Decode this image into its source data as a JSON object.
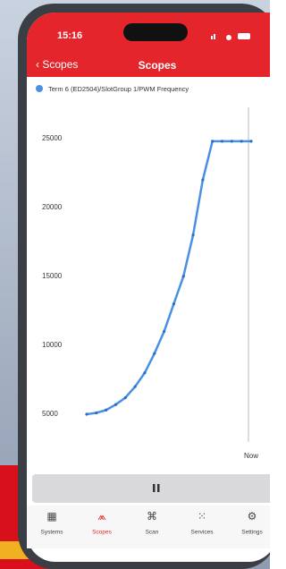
{
  "status_bar": {
    "time": "15:16"
  },
  "nav": {
    "back": "Scopes",
    "title": "Scopes"
  },
  "chart_data": {
    "type": "line",
    "categories": [
      null,
      null,
      null,
      null,
      null,
      null,
      null,
      null,
      null,
      null,
      null,
      null,
      null,
      null,
      null,
      null,
      null,
      "Now"
    ],
    "series": [
      {
        "name": "Term 6 (ED2504)/SlotGroup 1/PWM Frequency",
        "color": "#4a90e2",
        "values": [
          5000,
          5100,
          5300,
          5700,
          6200,
          7000,
          8000,
          9400,
          11000,
          13000,
          15000,
          18000,
          22000,
          24800,
          24800,
          24800,
          24800,
          24800
        ]
      }
    ],
    "ylim": [
      3000,
      27000
    ],
    "yticks": [
      5000,
      10000,
      15000,
      20000,
      25000
    ],
    "grid": false,
    "markers": true
  },
  "tab_bar": {
    "tabs": [
      "Systems",
      "Scopes",
      "Scan",
      "Services",
      "Settings"
    ],
    "active": 1
  }
}
